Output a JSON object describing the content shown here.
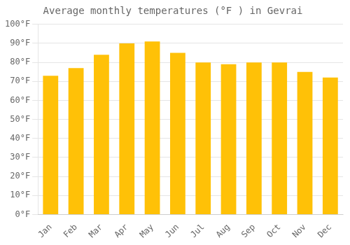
{
  "chart_data": {
    "type": "bar",
    "title": "Average monthly temperatures (°F ) in Gevrai",
    "categories": [
      "Jan",
      "Feb",
      "Mar",
      "Apr",
      "May",
      "Jun",
      "Jul",
      "Aug",
      "Sep",
      "Oct",
      "Nov",
      "Dec"
    ],
    "values": [
      73,
      77,
      84,
      90,
      91,
      85,
      80,
      79,
      80,
      80,
      75,
      72
    ],
    "color": "#FFC107",
    "ylim": [
      0,
      100
    ],
    "yticks": [
      {
        "value": 0,
        "label": "0°F"
      },
      {
        "value": 10,
        "label": "10°F"
      },
      {
        "value": 20,
        "label": "20°F"
      },
      {
        "value": 30,
        "label": "30°F"
      },
      {
        "value": 40,
        "label": "40°F"
      },
      {
        "value": 50,
        "label": "50°F"
      },
      {
        "value": 60,
        "label": "60°F"
      },
      {
        "value": 70,
        "label": "70°F"
      },
      {
        "value": 80,
        "label": "80°F"
      },
      {
        "value": 90,
        "label": "90°F"
      },
      {
        "value": 100,
        "label": "100°F"
      }
    ],
    "grid": true
  }
}
